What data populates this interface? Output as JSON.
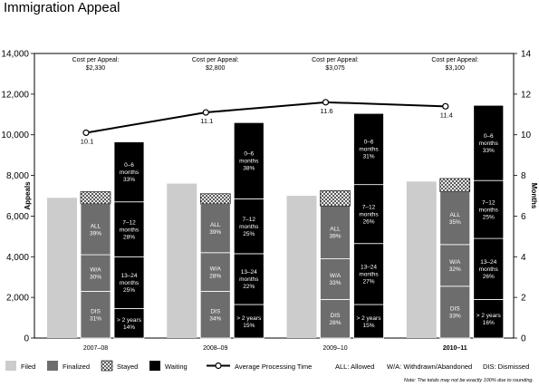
{
  "title": "Immigration Appeal",
  "note": "Note: The totals may not be exactly 100% due to rounding.",
  "chart_data": {
    "type": "bar",
    "ylabel_left": "Appeals",
    "ylabel_right": "Months",
    "ylim_left": [
      0,
      14000
    ],
    "ylim_right": [
      0,
      14
    ],
    "yticks_left": [
      "0",
      "2,000",
      "4,000",
      "6,000",
      "8,000",
      "10,000",
      "12,000",
      "14,000"
    ],
    "yticks_right": [
      "0",
      "2",
      "4",
      "6",
      "8",
      "10",
      "12",
      "14"
    ],
    "categories": [
      "2007–08",
      "2008–09",
      "2009–10",
      "2010–11"
    ],
    "cost_label": "Cost per Appeal:",
    "cost_per_appeal": [
      "$2,330",
      "$2,800",
      "$3,075",
      "$3,100"
    ],
    "filed": [
      6900,
      7600,
      7000,
      7700
    ],
    "finalized": {
      "dis": [
        2300,
        2300,
        1900,
        2550
      ],
      "wa": [
        1800,
        1900,
        2000,
        2050
      ],
      "all": [
        2500,
        2400,
        2600,
        2600
      ],
      "dis_labels": [
        "DIS\n31%",
        "DIS\n34%",
        "DIS\n28%",
        "DIS\n33%"
      ],
      "wa_labels": [
        "W/A\n30%",
        "W/A\n28%",
        "W/A\n33%",
        "W/A\n32%"
      ],
      "all_labels": [
        "ALL\n39%",
        "ALL\n39%",
        "ALL\n39%",
        "ALL\n35%"
      ]
    },
    "stayed": [
      600,
      500,
      750,
      650
    ],
    "waiting": {
      "gt2y": [
        1450,
        1650,
        1650,
        1900
      ],
      "m13_24": [
        2550,
        2500,
        3000,
        3000
      ],
      "m7_12": [
        2700,
        2700,
        2900,
        2850
      ],
      "m0_6": [
        2950,
        3750,
        3500,
        3700
      ],
      "gt2y_labels": [
        "> 2 years\n14%",
        "> 2 years\n15%",
        "> 2 years\n15%",
        "> 2 years\n16%"
      ],
      "m13_24_labels": [
        "13–24\nmonths\n25%",
        "13–24\nmonths\n22%",
        "13–24\nmonths\n27%",
        "13–24\nmonths\n26%"
      ],
      "m7_12_labels": [
        "7–12\nmonths\n28%",
        "7–12\nmonths\n25%",
        "7–12\nmonths\n26%",
        "7–12\nmonths\n25%"
      ],
      "m0_6_labels": [
        "0–6\nmonths\n33%",
        "0–6\nmonths\n38%",
        "0–6\nmonths\n31%",
        "0–6\nmonths\n33%"
      ]
    },
    "avg_processing_time": [
      10.1,
      11.1,
      11.6,
      11.4
    ],
    "avg_processing_labels": [
      "10.1",
      "11.1",
      "11.6",
      "11.4"
    ],
    "legend": {
      "filed": "Filed",
      "finalized": "Finalized",
      "stayed": "Stayed",
      "waiting": "Waiting",
      "line": "Average Processing Time",
      "all": "ALL: Allowed",
      "wa": "W/A: Withdrawn/Abandoned",
      "dis": "DIS: Dismissed"
    },
    "colors": {
      "filed": "#cccccc",
      "finalized": "#6d6d6d",
      "waiting": "#000000",
      "stayed_fill": "#ffffff",
      "line": "#000000",
      "axis": "#000000"
    },
    "grid": false
  }
}
